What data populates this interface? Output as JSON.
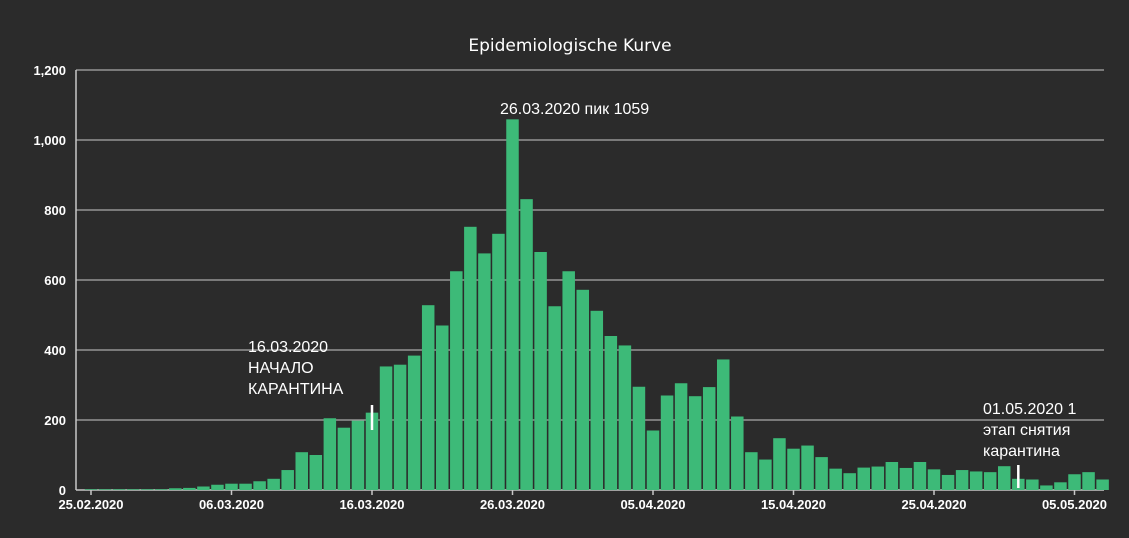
{
  "chart_data": {
    "type": "bar",
    "title": "Epidemiologische Kurve",
    "xlabel": "",
    "ylabel": "",
    "ylim": [
      0,
      1200
    ],
    "yticks": [
      "0",
      "200",
      "400",
      "600",
      "800",
      "1,000",
      "1,200"
    ],
    "ytick_values": [
      0,
      200,
      400,
      600,
      800,
      1000,
      1200
    ],
    "xticks": [
      "25.02.2020",
      "06.03.2020",
      "16.03.2020",
      "26.03.2020",
      "05.04.2020",
      "15.04.2020",
      "25.04.2020",
      "05.05.2020"
    ],
    "xtick_index": [
      0,
      10,
      20,
      30,
      40,
      50,
      60,
      70
    ],
    "bar_color": "#3dba78",
    "start_date": "25.02.2020",
    "values": [
      2,
      2,
      2,
      2,
      2,
      2,
      5,
      6,
      10,
      15,
      18,
      18,
      25,
      32,
      57,
      108,
      100,
      205,
      178,
      198,
      221,
      353,
      358,
      384,
      528,
      470,
      625,
      752,
      676,
      732,
      1059,
      831,
      680,
      525,
      625,
      572,
      512,
      440,
      413,
      295,
      170,
      270,
      305,
      268,
      294,
      373,
      210,
      108,
      87,
      148,
      118,
      127,
      94,
      61,
      48,
      64,
      67,
      80,
      63,
      80,
      59,
      43,
      57,
      53,
      51,
      68,
      32,
      30,
      13,
      22,
      45,
      51,
      30
    ],
    "annotations": [
      {
        "id": "quarantine_start",
        "lines": [
          "16.03.2020",
          "НАЧАЛО",
          "КАРАНТИНА"
        ],
        "index": 20
      },
      {
        "id": "peak",
        "lines": [
          "26.03.2020 пик 1059"
        ],
        "index": 30
      },
      {
        "id": "quarantine_lift",
        "lines": [
          "01.05.2020 1",
          "этап снятия",
          "карантина"
        ],
        "index": 66
      }
    ]
  }
}
